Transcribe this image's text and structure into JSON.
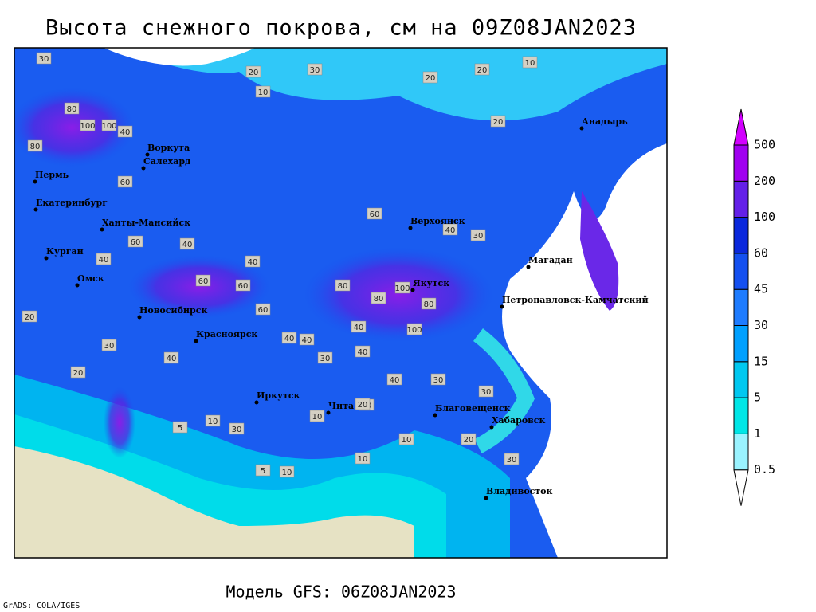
{
  "title": "Высота снежного покрова, см на 09Z08JAN2023",
  "footer": {
    "model": "Модель GFS: 06Z08JAN2023",
    "credit": "GrADS: COLA/IGES"
  },
  "colorbar": {
    "levels": [
      0.5,
      1,
      5,
      15,
      30,
      45,
      60,
      100,
      200,
      500
    ],
    "colors": [
      "#ffffff",
      "#9af3ff",
      "#00e6e6",
      "#00c8f0",
      "#00a0ff",
      "#1e7cff",
      "#1450f0",
      "#0a28dc",
      "#6420e8",
      "#a000f0",
      "#d200ff"
    ]
  },
  "cities": [
    "Воркута",
    "Салехард",
    "Пермь",
    "Екатеринбург",
    "Ханты-Мансийск",
    "Курган",
    "Омск",
    "Новосибирск",
    "Красноярск",
    "Иркутск",
    "Чита",
    "Благовещенск",
    "Хабаровск",
    "Владивосток",
    "Петропавловск-Камчатский",
    "Якутск",
    "Верхоянск",
    "Магадан",
    "Анадырь"
  ],
  "map_labels": [
    30,
    20,
    10,
    30,
    20,
    10,
    20,
    20,
    80,
    100,
    100,
    40,
    80,
    60,
    60,
    40,
    60,
    40,
    60,
    60,
    40,
    40,
    30,
    60,
    100,
    80,
    80,
    100,
    80,
    40,
    40,
    40,
    30,
    20,
    20,
    30,
    30,
    20,
    10,
    10,
    5,
    10,
    30,
    30,
    40,
    40,
    40,
    20,
    10,
    5,
    20,
    30,
    10
  ]
}
